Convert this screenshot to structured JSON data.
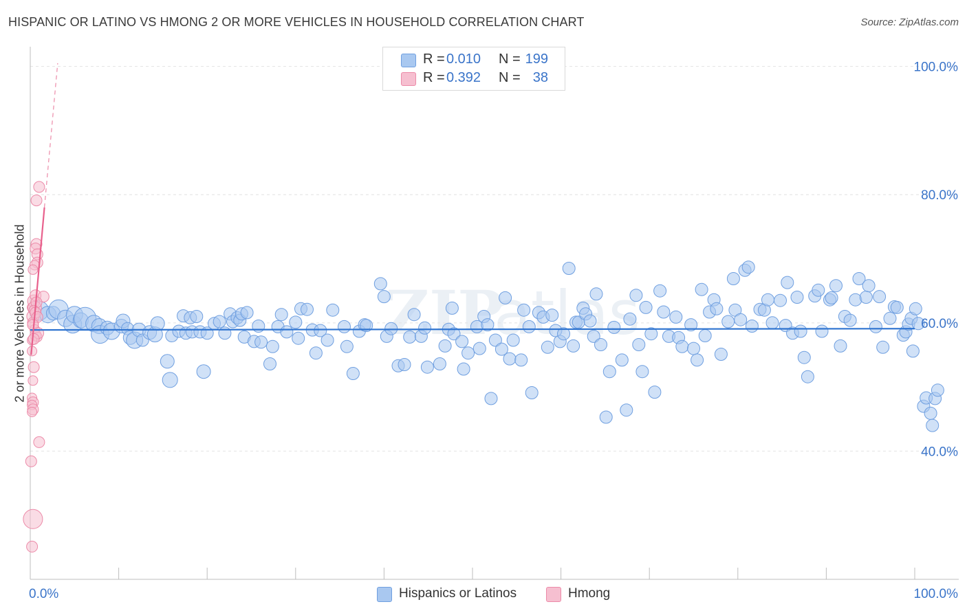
{
  "header": {
    "title": "HISPANIC OR LATINO VS HMONG 2 OR MORE VEHICLES IN HOUSEHOLD CORRELATION CHART",
    "source": "Source: ZipAtlas.com"
  },
  "legend_top": {
    "rows": [
      {
        "r_label": "R =",
        "r_value": "0.010",
        "n_label": "N =",
        "n_value": "199"
      },
      {
        "r_label": "R =",
        "r_value": "0.392",
        "n_label": "N =",
        "n_value": "38"
      }
    ]
  },
  "legend_bottom": {
    "items": [
      {
        "label": "Hispanics or Latinos"
      },
      {
        "label": "Hmong"
      }
    ]
  },
  "colors": {
    "blue_fill": "#a9c8f0",
    "blue_stroke": "#6f9fe0",
    "blue_line": "#2f74d0",
    "pink_fill": "#f6bfd0",
    "pink_stroke": "#ec8aa8",
    "pink_line": "#e8608c",
    "axis_text": "#3a74c9",
    "grid": "#e2e2e2"
  },
  "chart_data": {
    "type": "scatter",
    "title": "HISPANIC OR LATINO VS HMONG 2 OR MORE VEHICLES IN HOUSEHOLD CORRELATION CHART",
    "xlabel": "",
    "ylabel": "2 or more Vehicles in Household",
    "xlim": [
      0,
      100
    ],
    "ylim": [
      20,
      102
    ],
    "x_tick_labels": [
      "0.0%",
      "100.0%"
    ],
    "y_tick_labels": [
      "40.0%",
      "60.0%",
      "80.0%",
      "100.0%"
    ],
    "y_ticks": [
      40,
      60,
      80,
      100
    ],
    "grid": true,
    "legend_position": "top-center",
    "series": [
      {
        "name": "Hispanics or Latinos",
        "stats": {
          "R": 0.01,
          "N": 199
        },
        "trend": {
          "x": [
            0,
            100
          ],
          "y": [
            58.9,
            59.1
          ]
        },
        "points": [
          [
            1.0,
            61.9,
            14
          ],
          [
            2.0,
            61.3,
            12
          ],
          [
            2.6,
            61.5,
            10
          ],
          [
            3.2,
            62.1,
            14
          ],
          [
            4.0,
            60.7,
            12
          ],
          [
            4.8,
            59.8,
            13
          ],
          [
            5.0,
            61.3,
            12
          ],
          [
            5.7,
            60.4,
            11
          ],
          [
            6.2,
            60.7,
            16
          ],
          [
            7.2,
            59.9,
            12
          ],
          [
            7.8,
            59.5,
            11
          ],
          [
            7.9,
            58.2,
            13
          ],
          [
            8.7,
            59.2,
            10
          ],
          [
            9.2,
            58.7,
            12
          ],
          [
            10.3,
            59.5,
            10
          ],
          [
            10.5,
            60.3,
            10
          ],
          [
            11.0,
            59.1,
            9
          ],
          [
            11.3,
            57.7,
            10
          ],
          [
            11.8,
            57.3,
            12
          ],
          [
            12.3,
            58.9,
            10
          ],
          [
            12.7,
            57.3,
            9
          ],
          [
            13.5,
            58.5,
            10
          ],
          [
            14.1,
            58.2,
            11
          ],
          [
            14.4,
            59.9,
            10
          ],
          [
            15.5,
            54.0,
            10
          ],
          [
            15.8,
            51.1,
            11
          ],
          [
            16.0,
            58.0,
            9
          ],
          [
            16.8,
            58.7,
            9
          ],
          [
            17.3,
            61.1,
            9
          ],
          [
            17.6,
            58.4,
            9
          ],
          [
            18.1,
            60.8,
            9
          ],
          [
            18.3,
            58.6,
            9
          ],
          [
            18.8,
            61.0,
            9
          ],
          [
            19.2,
            58.6,
            9
          ],
          [
            19.6,
            52.4,
            10
          ],
          [
            20.0,
            58.4,
            9
          ],
          [
            20.8,
            59.9,
            9
          ],
          [
            21.4,
            60.2,
            9
          ],
          [
            22.0,
            58.4,
            9
          ],
          [
            22.6,
            61.4,
            9
          ],
          [
            22.9,
            60.2,
            9
          ],
          [
            23.4,
            60.8,
            9
          ],
          [
            23.7,
            60.4,
            9
          ],
          [
            23.9,
            61.4,
            9
          ],
          [
            24.2,
            57.8,
            9
          ],
          [
            24.5,
            61.6,
            9
          ],
          [
            25.3,
            57.1,
            9
          ],
          [
            25.8,
            59.5,
            9
          ],
          [
            26.1,
            57.0,
            9
          ],
          [
            27.1,
            53.6,
            9
          ],
          [
            27.4,
            56.3,
            9
          ],
          [
            28.0,
            59.4,
            9
          ],
          [
            28.4,
            61.3,
            9
          ],
          [
            29.0,
            58.6,
            9
          ],
          [
            30.0,
            60.1,
            9
          ],
          [
            30.3,
            57.6,
            9
          ],
          [
            30.6,
            62.2,
            9
          ],
          [
            31.3,
            62.1,
            9
          ],
          [
            31.9,
            58.9,
            9
          ],
          [
            32.3,
            55.3,
            9
          ],
          [
            32.8,
            58.8,
            9
          ],
          [
            33.6,
            57.3,
            9
          ],
          [
            34.2,
            62.0,
            9
          ],
          [
            35.5,
            59.4,
            9
          ],
          [
            35.8,
            56.3,
            9
          ],
          [
            36.5,
            52.1,
            9
          ],
          [
            37.2,
            58.7,
            9
          ],
          [
            37.8,
            59.7,
            9
          ],
          [
            38.0,
            59.6,
            9
          ],
          [
            39.6,
            66.1,
            9
          ],
          [
            40.0,
            64.1,
            9
          ],
          [
            40.3,
            57.9,
            9
          ],
          [
            40.8,
            59.1,
            9
          ],
          [
            41.6,
            53.3,
            9
          ],
          [
            42.3,
            53.5,
            9
          ],
          [
            42.9,
            57.8,
            9
          ],
          [
            43.4,
            61.3,
            9
          ],
          [
            44.2,
            57.9,
            9
          ],
          [
            44.6,
            59.2,
            9
          ],
          [
            44.9,
            53.1,
            9
          ],
          [
            46.3,
            53.6,
            9
          ],
          [
            46.9,
            56.4,
            9
          ],
          [
            47.3,
            59.0,
            9
          ],
          [
            47.7,
            62.3,
            9
          ],
          [
            47.9,
            58.3,
            9
          ],
          [
            48.8,
            57.1,
            9
          ],
          [
            49.0,
            52.8,
            9
          ],
          [
            49.5,
            55.3,
            9
          ],
          [
            50.5,
            59.4,
            9
          ],
          [
            50.8,
            56.0,
            9
          ],
          [
            51.3,
            61.0,
            9
          ],
          [
            51.7,
            59.7,
            9
          ],
          [
            52.1,
            48.2,
            9
          ],
          [
            52.6,
            57.3,
            9
          ],
          [
            53.3,
            55.9,
            9
          ],
          [
            53.7,
            63.9,
            9
          ],
          [
            54.2,
            54.4,
            9
          ],
          [
            54.6,
            57.3,
            9
          ],
          [
            55.5,
            54.2,
            9
          ],
          [
            55.8,
            62.0,
            9
          ],
          [
            56.4,
            59.4,
            9
          ],
          [
            56.7,
            49.1,
            9
          ],
          [
            57.5,
            61.6,
            9
          ],
          [
            58.0,
            60.9,
            9
          ],
          [
            58.5,
            56.2,
            9
          ],
          [
            59.0,
            61.2,
            9
          ],
          [
            59.4,
            58.8,
            9
          ],
          [
            59.9,
            57.1,
            9
          ],
          [
            60.3,
            58.3,
            9
          ],
          [
            60.9,
            68.5,
            9
          ],
          [
            61.4,
            56.4,
            9
          ],
          [
            61.7,
            60.1,
            9
          ],
          [
            62.0,
            60.1,
            9
          ],
          [
            62.5,
            62.3,
            9
          ],
          [
            62.8,
            61.4,
            9
          ],
          [
            63.3,
            60.3,
            9
          ],
          [
            63.7,
            57.9,
            9
          ],
          [
            64.0,
            64.5,
            9
          ],
          [
            64.5,
            56.6,
            9
          ],
          [
            65.1,
            45.3,
            9
          ],
          [
            65.5,
            52.4,
            9
          ],
          [
            66.0,
            59.3,
            9
          ],
          [
            66.9,
            54.2,
            9
          ],
          [
            67.4,
            46.4,
            9
          ],
          [
            67.8,
            60.6,
            9
          ],
          [
            68.5,
            64.3,
            9
          ],
          [
            68.8,
            56.6,
            9
          ],
          [
            69.2,
            52.4,
            9
          ],
          [
            69.6,
            62.4,
            9
          ],
          [
            70.2,
            58.3,
            9
          ],
          [
            70.6,
            49.2,
            9
          ],
          [
            71.2,
            65.0,
            9
          ],
          [
            71.6,
            61.7,
            9
          ],
          [
            72.2,
            57.9,
            9
          ],
          [
            73.0,
            60.9,
            9
          ],
          [
            73.3,
            57.7,
            9
          ],
          [
            73.7,
            56.3,
            9
          ],
          [
            74.7,
            59.7,
            9
          ],
          [
            75.0,
            56.0,
            9
          ],
          [
            75.4,
            54.2,
            9
          ],
          [
            75.9,
            65.2,
            9
          ],
          [
            76.3,
            58.0,
            9
          ],
          [
            76.8,
            61.7,
            9
          ],
          [
            77.3,
            63.6,
            9
          ],
          [
            77.6,
            62.2,
            9
          ],
          [
            78.1,
            55.1,
            9
          ],
          [
            78.9,
            60.2,
            9
          ],
          [
            79.5,
            66.9,
            9
          ],
          [
            79.7,
            62.0,
            9
          ],
          [
            80.3,
            60.5,
            9
          ],
          [
            80.8,
            68.2,
            9
          ],
          [
            81.2,
            68.7,
            9
          ],
          [
            81.6,
            59.5,
            9
          ],
          [
            82.5,
            62.1,
            9
          ],
          [
            83.0,
            62.0,
            9
          ],
          [
            83.4,
            63.6,
            9
          ],
          [
            83.9,
            60.0,
            9
          ],
          [
            84.8,
            63.5,
            9
          ],
          [
            85.4,
            59.6,
            9
          ],
          [
            85.6,
            66.3,
            9
          ],
          [
            86.2,
            58.4,
            9
          ],
          [
            86.7,
            64.0,
            9
          ],
          [
            87.1,
            58.7,
            9
          ],
          [
            87.5,
            54.6,
            9
          ],
          [
            87.9,
            51.6,
            9
          ],
          [
            88.7,
            64.2,
            9
          ],
          [
            89.1,
            65.1,
            9
          ],
          [
            89.5,
            58.7,
            9
          ],
          [
            90.4,
            63.6,
            9
          ],
          [
            90.6,
            63.9,
            9
          ],
          [
            91.1,
            65.8,
            9
          ],
          [
            91.6,
            56.4,
            9
          ],
          [
            92.1,
            61.0,
            9
          ],
          [
            92.7,
            60.4,
            9
          ],
          [
            93.3,
            63.6,
            9
          ],
          [
            93.7,
            66.9,
            9
          ],
          [
            94.5,
            64.0,
            9
          ],
          [
            94.8,
            65.8,
            9
          ],
          [
            95.6,
            59.4,
            9
          ],
          [
            96.0,
            64.1,
            9
          ],
          [
            96.4,
            56.2,
            9
          ],
          [
            97.2,
            60.7,
            9
          ],
          [
            97.7,
            62.5,
            9
          ],
          [
            98.0,
            62.4,
            9
          ],
          [
            98.7,
            58.1,
            9
          ],
          [
            99.0,
            58.6,
            9
          ],
          [
            99.3,
            59.8,
            9
          ],
          [
            99.6,
            60.7,
            9
          ],
          [
            99.8,
            55.6,
            9
          ],
          [
            100.1,
            62.2,
            9
          ],
          [
            100.4,
            59.9,
            9
          ],
          [
            101.0,
            47.0,
            9
          ],
          [
            101.3,
            48.3,
            9
          ],
          [
            101.8,
            45.9,
            9
          ],
          [
            102.0,
            44.0,
            9
          ],
          [
            102.3,
            48.2,
            9
          ],
          [
            102.6,
            49.5,
            9
          ]
        ]
      },
      {
        "name": "Hmong",
        "stats": {
          "R": 0.392,
          "N": 38
        },
        "trend": {
          "x": [
            0.1,
            1.6
          ],
          "y": [
            55.0,
            78.0
          ]
        },
        "trend_extension": {
          "x": [
            1.6,
            3.1
          ],
          "y": [
            78.0,
            100.5
          ]
        },
        "points": [
          [
            0.2,
            62.4,
            7
          ],
          [
            0.3,
            61.0,
            9
          ],
          [
            0.4,
            63.4,
            9
          ],
          [
            0.5,
            62.3,
            10
          ],
          [
            0.3,
            60.0,
            8
          ],
          [
            0.5,
            59.0,
            7
          ],
          [
            0.6,
            58.1,
            8
          ],
          [
            0.8,
            57.8,
            7
          ],
          [
            0.2,
            57.3,
            7
          ],
          [
            0.4,
            53.1,
            8
          ],
          [
            0.3,
            51.0,
            7
          ],
          [
            0.2,
            48.3,
            7
          ],
          [
            0.3,
            47.6,
            8
          ],
          [
            0.2,
            47.2,
            7
          ],
          [
            0.3,
            46.5,
            8
          ],
          [
            0.2,
            46.1,
            7
          ],
          [
            0.1,
            38.4,
            8
          ],
          [
            0.3,
            29.4,
            14
          ],
          [
            0.2,
            25.1,
            8
          ],
          [
            1.0,
            41.4,
            8
          ],
          [
            1.0,
            81.2,
            8
          ],
          [
            0.7,
            79.1,
            8
          ],
          [
            0.7,
            72.3,
            8
          ],
          [
            0.6,
            71.6,
            8
          ],
          [
            0.8,
            70.7,
            8
          ],
          [
            0.8,
            69.4,
            8
          ],
          [
            0.5,
            69.0,
            7
          ],
          [
            0.3,
            68.3,
            7
          ],
          [
            0.6,
            64.3,
            8
          ],
          [
            1.5,
            64.1,
            8
          ],
          [
            0.7,
            63.2,
            8
          ],
          [
            0.4,
            62.0,
            7
          ],
          [
            0.6,
            61.6,
            8
          ],
          [
            0.8,
            60.9,
            8
          ],
          [
            0.3,
            59.7,
            8
          ],
          [
            0.9,
            58.4,
            8
          ],
          [
            0.4,
            57.5,
            8
          ],
          [
            0.2,
            55.6,
            7
          ]
        ]
      }
    ]
  }
}
